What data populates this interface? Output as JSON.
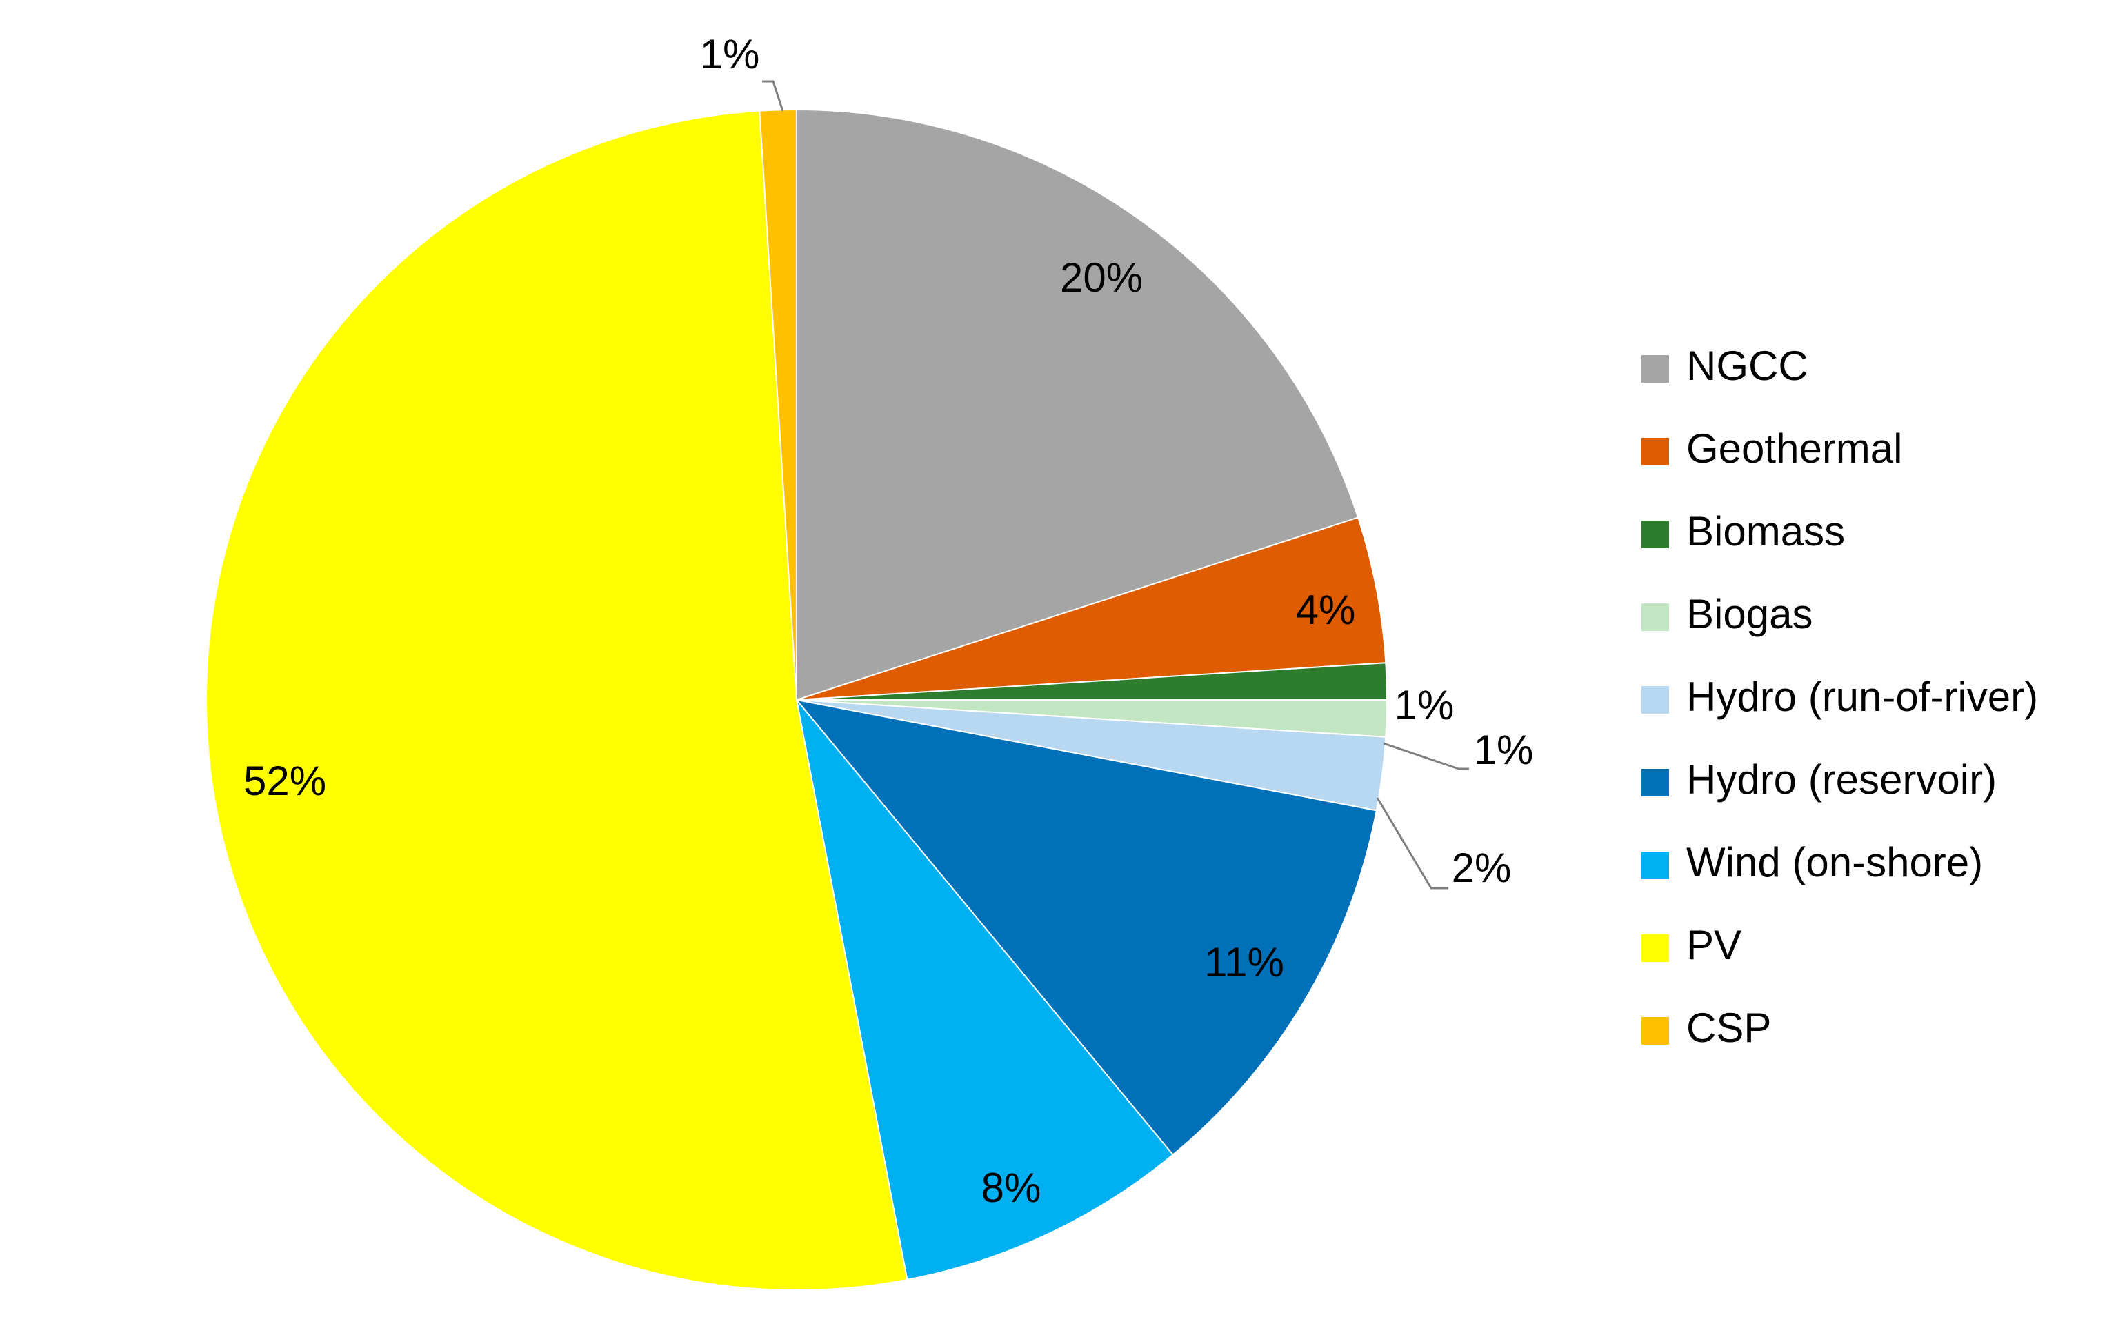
{
  "chart_data": {
    "type": "pie",
    "categories": [
      "NGCC",
      "Geothermal",
      "Biomass",
      "Biogas",
      "Hydro (run-of-river)",
      "Hydro (reservoir)",
      "Wind (on-shore)",
      "PV",
      "CSP"
    ],
    "values": [
      20,
      4,
      1,
      1,
      2,
      11,
      8,
      52,
      1
    ],
    "value_labels": [
      "20%",
      "4%",
      "1%",
      "1%",
      "2%",
      "11%",
      "8%",
      "52%",
      "1%"
    ],
    "colors": [
      "#a5a5a5",
      "#e05c00",
      "#2e7d2e",
      "#c2e6c2",
      "#b7d8f0",
      "#0070b8",
      "#00b0f0",
      "#ffff00",
      "#ffc000"
    ],
    "legend": "right"
  }
}
